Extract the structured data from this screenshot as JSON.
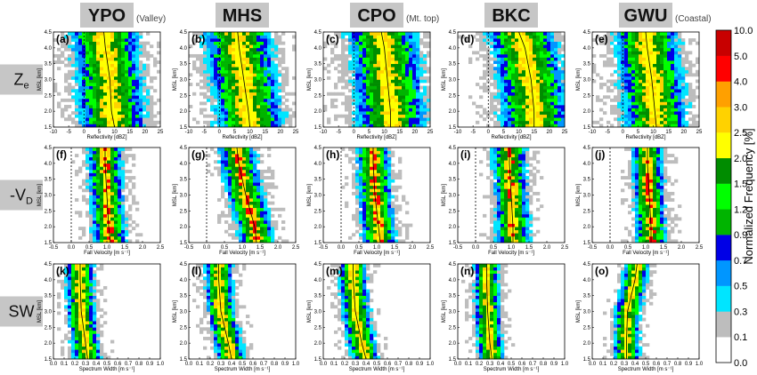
{
  "sites": [
    {
      "name": "YPO",
      "note": "(Valley)"
    },
    {
      "name": "MHS",
      "note": ""
    },
    {
      "name": "CPO",
      "note": "(Mt. top)"
    },
    {
      "name": "BKC",
      "note": ""
    },
    {
      "name": "GWU",
      "note": "(Coastal)"
    }
  ],
  "rows": [
    {
      "label": "Z",
      "sub": "e"
    },
    {
      "label": "-V",
      "sub": "D"
    },
    {
      "label": "SW",
      "sub": ""
    }
  ],
  "panel_labels": [
    "(a)",
    "(b)",
    "(c)",
    "(d)",
    "(e)",
    "(f)",
    "(g)",
    "(h)",
    "(i)",
    "(j)",
    "(k)",
    "(l)",
    "(m)",
    "(n)",
    "(o)"
  ],
  "colorbar": {
    "label": "Normalized Frequency [%]",
    "ticks": [
      "0.0",
      "0.1",
      "0.3",
      "0.5",
      "0.7",
      "0.9",
      "1.2",
      "1.5",
      "2.0",
      "2.5",
      "3.0",
      "4.0",
      "5.0",
      "10.0"
    ],
    "colors": [
      "#ffffff",
      "#bdbdbd",
      "#00e5ff",
      "#0096ff",
      "#0000e6",
      "#00b400",
      "#00ff00",
      "#008c00",
      "#ffff00",
      "#ffd200",
      "#ffa000",
      "#ff0000",
      "#c80000",
      "#9a00ff"
    ]
  },
  "chart_data": {
    "type": "heatmap",
    "ylabel": "MSL [km]",
    "ylim": [
      1.5,
      4.5
    ],
    "yticks": [
      "1.5",
      "2.0",
      "2.5",
      "3.0",
      "3.5",
      "4.0",
      "4.5"
    ],
    "rows": [
      {
        "variable": "Reflectivity",
        "xlabel": "Reflectivity [dBZ]",
        "xlim": [
          -10,
          25
        ],
        "xticks": [
          "-10",
          "-5",
          "0",
          "5",
          "10",
          "15",
          "20",
          "25"
        ]
      },
      {
        "variable": "Fall Velocity",
        "xlabel": "Fall Velocity [m s⁻¹]",
        "xlim": [
          -0.5,
          2.5
        ],
        "xticks": [
          "-0.5",
          "0.0",
          "0.5",
          "1.0",
          "1.5",
          "2.0",
          "2.5"
        ]
      },
      {
        "variable": "Spectrum Width",
        "xlabel": "Spectrum Width [m s⁻¹]",
        "xlim": [
          0.0,
          1.0
        ],
        "xticks": [
          "0.0",
          "0.1",
          "0.2",
          "0.3",
          "0.4",
          "0.5",
          "0.6",
          "0.7",
          "0.8",
          "0.9",
          "1.0"
        ]
      }
    ],
    "panels": [
      {
        "panel": "(a)",
        "site": "YPO",
        "center": [
          [
            1.5,
            10
          ],
          [
            2.0,
            9
          ],
          [
            3.0,
            8.5
          ],
          [
            4.0,
            7
          ],
          [
            4.5,
            6.5
          ]
        ],
        "spread_rel": 0.24
      },
      {
        "panel": "(b)",
        "site": "MHS",
        "center": [
          [
            1.5,
            10
          ],
          [
            2.0,
            9.5
          ],
          [
            3.0,
            8
          ],
          [
            4.0,
            6.5
          ],
          [
            4.5,
            6
          ]
        ],
        "spread_rel": 0.24
      },
      {
        "panel": "(c)",
        "site": "CPO",
        "center": [
          [
            1.5,
            12
          ],
          [
            2.0,
            12
          ],
          [
            3.0,
            11
          ],
          [
            4.0,
            10
          ],
          [
            4.5,
            9
          ]
        ],
        "spread_rel": 0.25
      },
      {
        "panel": "(d)",
        "site": "BKC",
        "center": [
          [
            1.5,
            15
          ],
          [
            2.0,
            15
          ],
          [
            3.0,
            14
          ],
          [
            4.0,
            12
          ],
          [
            4.5,
            10
          ]
        ],
        "spread_rel": 0.24
      },
      {
        "panel": "(e)",
        "site": "GWU",
        "center": [
          [
            1.5,
            11
          ],
          [
            2.0,
            10.5
          ],
          [
            3.0,
            9.5
          ],
          [
            4.0,
            8
          ],
          [
            4.5,
            7.5
          ]
        ],
        "spread_rel": 0.23
      },
      {
        "panel": "(f)",
        "site": "YPO",
        "center": [
          [
            1.5,
            1.1
          ],
          [
            2.0,
            1.05
          ],
          [
            3.0,
            1.0
          ],
          [
            4.0,
            0.95
          ],
          [
            4.5,
            0.95
          ]
        ],
        "spread_rel": 0.12
      },
      {
        "panel": "(g)",
        "site": "MHS",
        "center": [
          [
            1.5,
            1.4
          ],
          [
            2.0,
            1.35
          ],
          [
            3.0,
            1.1
          ],
          [
            4.0,
            0.9
          ],
          [
            4.5,
            0.85
          ]
        ],
        "spread_rel": 0.13
      },
      {
        "panel": "(h)",
        "site": "CPO",
        "center": [
          [
            1.5,
            1.1
          ],
          [
            2.0,
            1.05
          ],
          [
            3.0,
            0.95
          ],
          [
            4.0,
            0.9
          ],
          [
            4.5,
            0.9
          ]
        ],
        "spread_rel": 0.12
      },
      {
        "panel": "(i)",
        "site": "BKC",
        "center": [
          [
            1.5,
            1.05
          ],
          [
            2.0,
            1.05
          ],
          [
            3.0,
            1.0
          ],
          [
            4.0,
            0.95
          ],
          [
            4.5,
            0.95
          ]
        ],
        "spread_rel": 0.12
      },
      {
        "panel": "(j)",
        "site": "GWU",
        "center": [
          [
            1.5,
            1.15
          ],
          [
            2.0,
            1.15
          ],
          [
            3.0,
            1.1
          ],
          [
            4.0,
            1.05
          ],
          [
            4.5,
            1.05
          ]
        ],
        "spread_rel": 0.11
      },
      {
        "panel": "(k)",
        "site": "YPO",
        "center": [
          [
            1.5,
            0.32
          ],
          [
            2.0,
            0.3
          ],
          [
            3.0,
            0.26
          ],
          [
            4.0,
            0.25
          ],
          [
            4.5,
            0.25
          ]
        ],
        "spread_rel": 0.1
      },
      {
        "panel": "(l)",
        "site": "MHS",
        "center": [
          [
            1.5,
            0.4
          ],
          [
            2.0,
            0.37
          ],
          [
            3.0,
            0.3
          ],
          [
            4.0,
            0.28
          ],
          [
            4.5,
            0.28
          ]
        ],
        "spread_rel": 0.1
      },
      {
        "panel": "(m)",
        "site": "CPO",
        "center": [
          [
            1.5,
            0.4
          ],
          [
            2.0,
            0.36
          ],
          [
            3.0,
            0.3
          ],
          [
            4.0,
            0.28
          ],
          [
            4.5,
            0.28
          ]
        ],
        "spread_rel": 0.1
      },
      {
        "panel": "(n)",
        "site": "BKC",
        "center": [
          [
            1.5,
            0.32
          ],
          [
            2.0,
            0.3
          ],
          [
            3.0,
            0.28
          ],
          [
            4.0,
            0.27
          ],
          [
            4.5,
            0.27
          ]
        ],
        "spread_rel": 0.09
      },
      {
        "panel": "(o)",
        "site": "GWU",
        "center": [
          [
            1.5,
            0.32
          ],
          [
            2.0,
            0.32
          ],
          [
            3.0,
            0.33
          ],
          [
            4.0,
            0.4
          ],
          [
            4.5,
            0.42
          ]
        ],
        "spread_rel": 0.09
      }
    ]
  }
}
